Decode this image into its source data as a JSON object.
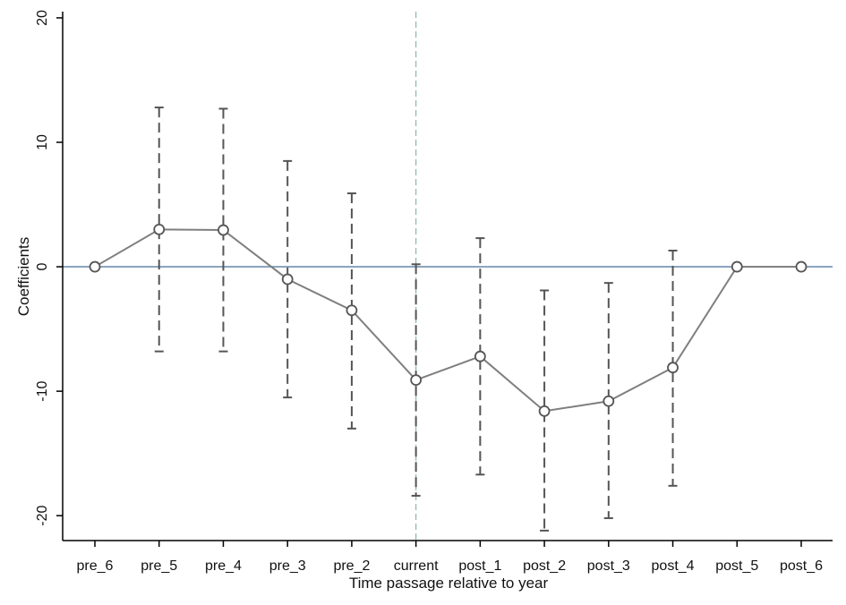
{
  "chart_data": {
    "type": "line",
    "xlabel": "Time passage relative to year",
    "ylabel": "Coefficients",
    "categories": [
      "pre_6",
      "pre_5",
      "pre_4",
      "pre_3",
      "pre_2",
      "current",
      "post_1",
      "post_2",
      "post_3",
      "post_4",
      "post_5",
      "post_6"
    ],
    "series": [
      {
        "values": [
          0,
          3.0,
          2.95,
          -1.0,
          -3.5,
          -9.1,
          -7.2,
          -11.6,
          -10.8,
          -8.1,
          0,
          0
        ],
        "ci_lower": [
          null,
          -6.8,
          -6.8,
          -10.5,
          -13.0,
          -18.4,
          -16.7,
          -21.2,
          -20.2,
          -17.6,
          null,
          null
        ],
        "ci_upper": [
          null,
          12.8,
          12.7,
          8.5,
          5.9,
          0.2,
          2.3,
          -1.9,
          -1.3,
          1.3,
          null,
          null
        ]
      }
    ],
    "ylim": [
      -22,
      20.5
    ],
    "yticks": [
      -20,
      -10,
      0,
      10,
      20
    ],
    "reference_lines": {
      "horizontal_y": 0,
      "vertical_at": "current"
    },
    "grid": false,
    "colors": {
      "line": "#7f7f7f",
      "marker": "#555555",
      "ci": "#555555",
      "zero_line": "#6f8fb0",
      "vline": "#8fb5b0",
      "axis": "#000000"
    }
  }
}
